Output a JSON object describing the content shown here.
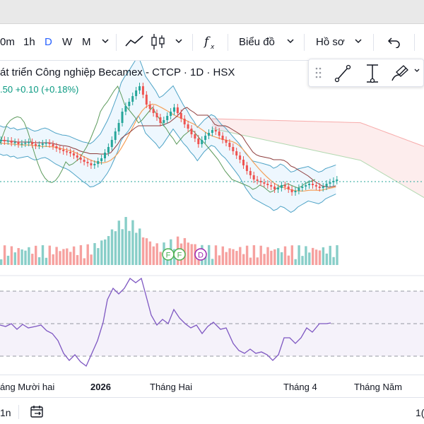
{
  "toolbar": {
    "interval_partial": "0m",
    "interval_1h": "1h",
    "interval_d": "D",
    "interval_w": "W",
    "interval_m": "M",
    "chart_type_label": "Biểu đồ",
    "profile_label": "Hồ sơ"
  },
  "legend": {
    "title": "át triển Công nghiệp Becamex - CTCP · 1D · HSX",
    "price_partial": ".50",
    "change": "+0.10",
    "change_pct": "(+0.18%)"
  },
  "events": [
    "F",
    "F",
    "D"
  ],
  "time_axis": {
    "labels": [
      "áng Mười hai",
      "2026",
      "Tháng Hai",
      "Tháng 4",
      "Tháng Năm"
    ]
  },
  "bottom": {
    "range_partial": "1n",
    "right_partial": "1("
  },
  "colors": {
    "up": "#26a69a",
    "down": "#ef5350",
    "accent": "#2962ff",
    "rsi": "#7e57c2"
  },
  "icons": {
    "trend": "trend-line-icon",
    "candles": "candlestick-icon",
    "fx": "indicators-icon",
    "undo": "undo-icon",
    "date_range": "calendar-range-icon"
  }
}
